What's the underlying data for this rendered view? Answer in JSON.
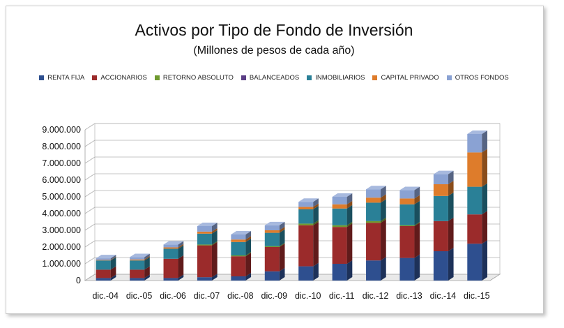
{
  "chart_data": {
    "type": "bar",
    "stacked": true,
    "style": "3d-column",
    "title": "Activos por Tipo de Fondo de Inversión",
    "subtitle": "(Millones de pesos de cada año)",
    "categories": [
      "dic.-04",
      "dic.-05",
      "dic.-06",
      "dic.-07",
      "dic.-08",
      "dic.-09",
      "dic.-10",
      "dic.-11",
      "dic.-12",
      "dic.-13",
      "dic.-14",
      "dic.-15"
    ],
    "ylim": [
      0,
      9000000
    ],
    "yticks": [
      0,
      1000000,
      2000000,
      3000000,
      4000000,
      5000000,
      6000000,
      7000000,
      8000000,
      9000000
    ],
    "ytick_labels": [
      "0",
      "1.000.000",
      "2.000.000",
      "3.000.000",
      "4.000.000",
      "5.000.000",
      "6.000.000",
      "7.000.000",
      "8.000.000",
      "9.000.000"
    ],
    "grid": true,
    "legend_position": "top",
    "series": [
      {
        "name": "RENTA FIJA",
        "color": "#2e4f8f",
        "values": [
          150000,
          150000,
          150000,
          200000,
          250000,
          550000,
          850000,
          1000000,
          1200000,
          1350000,
          1750000,
          2200000
        ]
      },
      {
        "name": "ACCIONARIOS",
        "color": "#9b2b2b",
        "values": [
          500000,
          500000,
          1150000,
          1900000,
          1200000,
          1450000,
          2450000,
          2200000,
          2250000,
          1900000,
          1800000,
          1750000
        ]
      },
      {
        "name": "RETORNO ABSOLUTO",
        "color": "#6f9a2f",
        "values": [
          0,
          0,
          0,
          50000,
          50000,
          50000,
          100000,
          100000,
          100000,
          50000,
          0,
          0
        ]
      },
      {
        "name": "BALANCEADOS",
        "color": "#5b3e86",
        "values": [
          0,
          0,
          0,
          0,
          0,
          0,
          0,
          0,
          0,
          0,
          0,
          0
        ]
      },
      {
        "name": "INMOBILIARIOS",
        "color": "#2a8097",
        "values": [
          550000,
          550000,
          600000,
          650000,
          800000,
          800000,
          850000,
          1000000,
          1100000,
          1250000,
          1500000,
          1650000
        ]
      },
      {
        "name": "CAPITAL PRIVADO",
        "color": "#de7c2b",
        "values": [
          30000,
          60000,
          80000,
          120000,
          150000,
          150000,
          150000,
          250000,
          300000,
          350000,
          700000,
          2050000
        ]
      },
      {
        "name": "OTROS FONDOS",
        "color": "#8aa2d3",
        "values": [
          100000,
          140000,
          170000,
          330000,
          300000,
          300000,
          300000,
          450000,
          500000,
          500000,
          600000,
          1100000
        ]
      }
    ]
  }
}
